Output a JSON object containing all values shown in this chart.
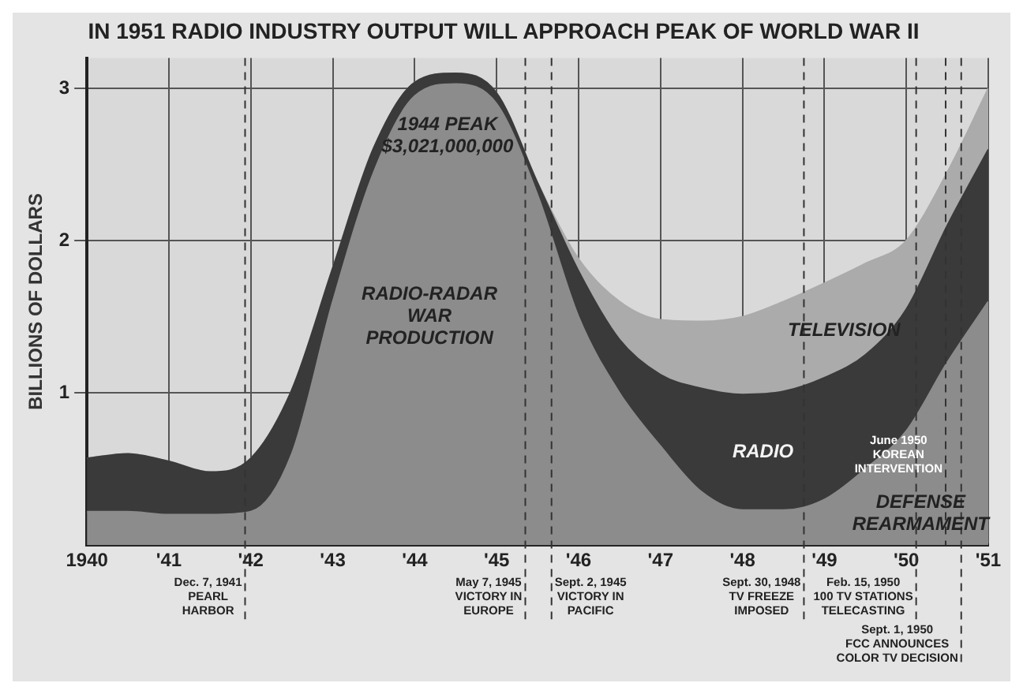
{
  "chart_data": {
    "type": "area",
    "title": "IN 1951 RADIO INDUSTRY OUTPUT WILL APPROACH PEAK OF WORLD WAR II",
    "ylabel": "BILLIONS OF DOLLARS",
    "stacked": true,
    "grid": true,
    "legend": false,
    "x": [
      1940,
      1940.5,
      1941,
      1941.5,
      1942,
      1942.5,
      1943,
      1943.5,
      1944,
      1944.5,
      1945,
      1945.5,
      1946,
      1946.5,
      1947,
      1947.5,
      1948,
      1948.5,
      1949,
      1949.5,
      1950,
      1950.5,
      1951
    ],
    "series": [
      {
        "type": "area",
        "color": "#8c8c8c",
        "values": [
          0.22,
          0.22,
          0.2,
          0.2,
          0.22,
          0.6,
          1.6,
          2.45,
          2.95,
          3.03,
          2.9,
          2.3,
          1.5,
          1.0,
          0.65,
          0.35,
          0.23,
          0.23,
          0.3,
          0.5,
          0.75,
          1.2,
          1.6
        ]
      },
      {
        "type": "area",
        "color": "#3a3a3a",
        "values": [
          0.35,
          0.38,
          0.35,
          0.28,
          0.35,
          0.42,
          0.22,
          0.16,
          0.09,
          0.07,
          0.07,
          0.08,
          0.3,
          0.35,
          0.47,
          0.68,
          0.76,
          0.78,
          0.8,
          0.75,
          0.8,
          0.9,
          1.0
        ]
      },
      {
        "type": "area",
        "color": "#ababab",
        "values": [
          0,
          0,
          0,
          0,
          0,
          0,
          0,
          0,
          0,
          0,
          0,
          0,
          0.08,
          0.25,
          0.36,
          0.44,
          0.51,
          0.59,
          0.62,
          0.6,
          0.45,
          0.35,
          0.4
        ]
      }
    ],
    "xlim": [
      1940,
      1951
    ],
    "xticks": [
      {
        "value": 1940,
        "label": "1940"
      },
      {
        "value": 1941,
        "label": "'41"
      },
      {
        "value": 1942,
        "label": "'42"
      },
      {
        "value": 1943,
        "label": "'43"
      },
      {
        "value": 1944,
        "label": "'44"
      },
      {
        "value": 1945,
        "label": "'45"
      },
      {
        "value": 1946,
        "label": "'46"
      },
      {
        "value": 1947,
        "label": "'47"
      },
      {
        "value": 1948,
        "label": "'48"
      },
      {
        "value": 1949,
        "label": "'49"
      },
      {
        "value": 1950,
        "label": "'50"
      },
      {
        "value": 1951,
        "label": "'51"
      }
    ],
    "ylim": [
      0,
      3.2
    ],
    "yticks": [
      1,
      2,
      3
    ],
    "ref_lines": [
      {
        "axis": "x",
        "value": 1941.93,
        "label": "Dec. 7, 1941\nPEARL\nHARBOR",
        "line_style": "dashed"
      },
      {
        "axis": "x",
        "value": 1945.35,
        "label": "May 7, 1945\nVICTORY IN\nEUROPE",
        "line_style": "dashed"
      },
      {
        "axis": "x",
        "value": 1945.67,
        "label": "Sept. 2, 1945\nVICTORY IN\nPACIFIC",
        "line_style": "dashed"
      },
      {
        "axis": "x",
        "value": 1948.75,
        "label": "Sept. 30, 1948\nTV FREEZE\nIMPOSED",
        "line_style": "dashed"
      },
      {
        "axis": "x",
        "value": 1950.12,
        "label": "Feb. 15, 1950\n100 TV STATIONS\nTELECASTING",
        "line_style": "dashed"
      },
      {
        "axis": "x",
        "value": 1950.48,
        "label": "June 1950\nKOREAN\nINTERVENTION",
        "line_style": "dashed"
      },
      {
        "axis": "x",
        "value": 1950.67,
        "label": "Sept. 1, 1950\nFCC ANNOUNCES\nCOLOR TV DECISION",
        "line_style": "dashed"
      }
    ],
    "annotations": [
      "1944 PEAK\n$3,021,000,000",
      "RADIO-RADAR\nWAR\nPRODUCTION",
      "RADIO",
      "TELEVISION",
      "DEFENSE\nREARMAMENT"
    ]
  }
}
